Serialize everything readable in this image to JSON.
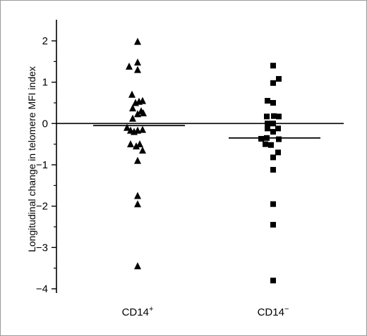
{
  "chart_data": {
    "type": "scatter",
    "ylabel": "Longitudinal change in telomere MFI index",
    "ylim": [
      -4,
      2
    ],
    "yticks": [
      "2",
      "1",
      "0",
      "−1",
      "−2",
      "−3",
      "−4"
    ],
    "ytick_values": [
      2,
      1,
      0,
      -1,
      -2,
      -3,
      -4
    ],
    "categories": [
      {
        "label": "CD14+",
        "base": "CD14",
        "sup": "+"
      },
      {
        "label": "CD14−",
        "base": "CD14",
        "sup": "−"
      }
    ],
    "series": [
      {
        "category": "CD14+",
        "marker": "triangle",
        "mean": -0.05,
        "points": [
          {
            "x": 0,
            "y": 1.98
          },
          {
            "x": -1.2,
            "y": 1.38
          },
          {
            "x": 0,
            "y": 1.48
          },
          {
            "x": 0,
            "y": 1.3
          },
          {
            "x": -0.8,
            "y": 0.7
          },
          {
            "x": 0.7,
            "y": 0.55
          },
          {
            "x": -0.3,
            "y": 0.5
          },
          {
            "x": 0.2,
            "y": 0.53
          },
          {
            "x": -0.7,
            "y": 0.37
          },
          {
            "x": 0.5,
            "y": 0.3
          },
          {
            "x": 0,
            "y": 0.23
          },
          {
            "x": 0.8,
            "y": 0.25
          },
          {
            "x": -0.7,
            "y": 0.12
          },
          {
            "x": -1.5,
            "y": -0.1
          },
          {
            "x": -1.0,
            "y": -0.17
          },
          {
            "x": 0.0,
            "y": -0.17
          },
          {
            "x": -0.5,
            "y": -0.2
          },
          {
            "x": 0.7,
            "y": -0.15
          },
          {
            "x": -1.0,
            "y": -0.5
          },
          {
            "x": -0.2,
            "y": -0.55
          },
          {
            "x": 0.3,
            "y": -0.5
          },
          {
            "x": 0.7,
            "y": -0.65
          },
          {
            "x": 0,
            "y": -0.9
          },
          {
            "x": 0,
            "y": -1.75
          },
          {
            "x": 0,
            "y": -1.95
          },
          {
            "x": 0,
            "y": -3.45
          }
        ]
      },
      {
        "category": "CD14−",
        "marker": "square",
        "mean": -0.35,
        "points": [
          {
            "x": 0,
            "y": 1.4
          },
          {
            "x": 0.8,
            "y": 1.08
          },
          {
            "x": 0,
            "y": 0.98
          },
          {
            "x": -0.8,
            "y": 0.55
          },
          {
            "x": 0,
            "y": 0.5
          },
          {
            "x": -0.9,
            "y": 0.17
          },
          {
            "x": 0.1,
            "y": 0.18
          },
          {
            "x": 0.8,
            "y": 0.17
          },
          {
            "x": -0.8,
            "y": 0.0
          },
          {
            "x": 0,
            "y": 0.0
          },
          {
            "x": -0.8,
            "y": -0.12
          },
          {
            "x": 0.7,
            "y": -0.12
          },
          {
            "x": 0,
            "y": -0.2
          },
          {
            "x": -1.7,
            "y": -0.37
          },
          {
            "x": -0.9,
            "y": -0.35
          },
          {
            "x": 0.8,
            "y": -0.38
          },
          {
            "x": -1.1,
            "y": -0.5
          },
          {
            "x": -0.3,
            "y": -0.52
          },
          {
            "x": 0.7,
            "y": -0.7
          },
          {
            "x": 0,
            "y": -0.82
          },
          {
            "x": 0,
            "y": -1.12
          },
          {
            "x": 0,
            "y": -1.95
          },
          {
            "x": 0,
            "y": -2.45
          },
          {
            "x": 0,
            "y": -3.8
          }
        ]
      }
    ]
  }
}
